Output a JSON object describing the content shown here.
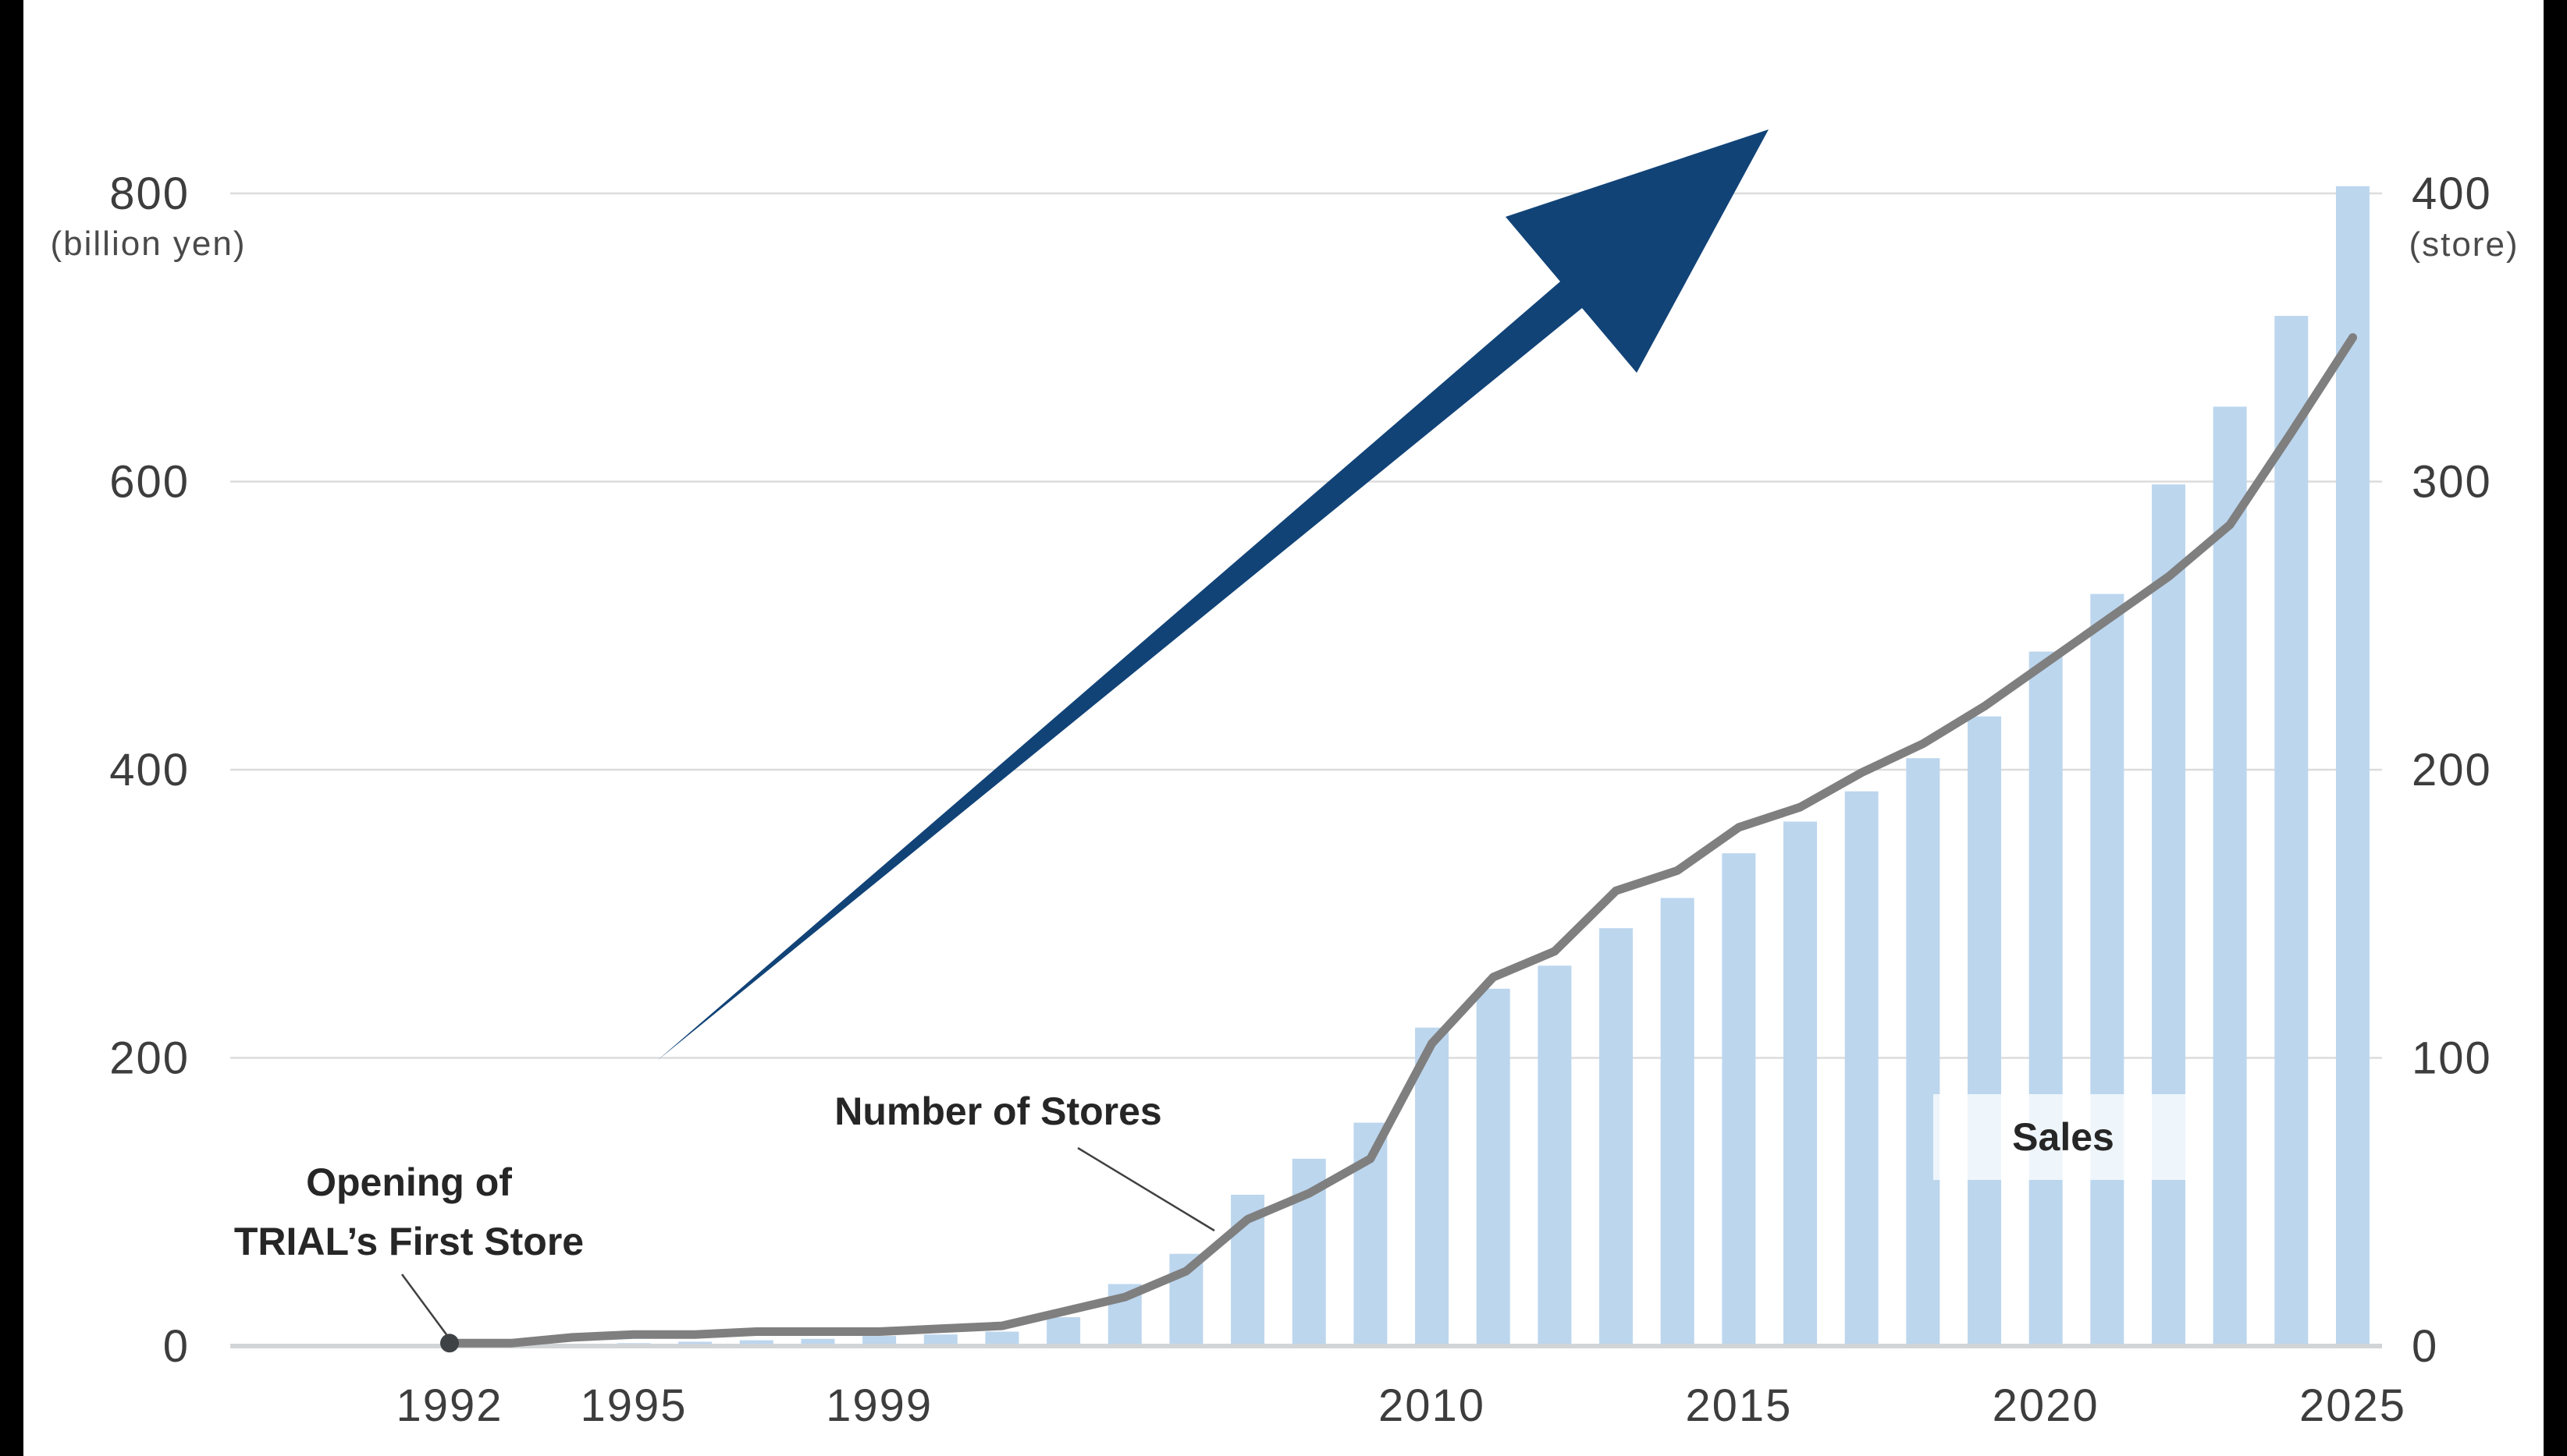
{
  "page": {
    "background": "#ffffff",
    "letterbox_color": "#000000"
  },
  "axes": {
    "left_unit": "(billion yen)",
    "right_unit": "(store)"
  },
  "annotations": {
    "first_store_line1": "Opening of",
    "first_store_line2": "TRIAL’s First Store",
    "number_of_stores": "Number of Stores",
    "sales": "Sales"
  },
  "colors": {
    "bar": "#bcd6ee",
    "stores_line": "#7f7f7f",
    "origin_dot": "#3f4245",
    "arrow": "#114377",
    "gridline": "#dcdcdc",
    "axis_line": "#d2d5d7",
    "tick_text": "#3d3d3d",
    "annotation_text": "#262626",
    "pointer_line": "#404040"
  },
  "chart_data": {
    "type": "combo",
    "x_slot_count": 32,
    "x_tick_labels": [
      {
        "slot": 0,
        "label": "1992"
      },
      {
        "slot": 3,
        "label": "1995"
      },
      {
        "slot": 7,
        "label": "1999"
      },
      {
        "slot": 16,
        "label": "2010"
      },
      {
        "slot": 21,
        "label": "2015"
      },
      {
        "slot": 26,
        "label": "2020"
      },
      {
        "slot": 31,
        "label": "2025"
      }
    ],
    "left_axis": {
      "label": "(billion yen)",
      "range": [
        0,
        800
      ],
      "ticks": [
        0,
        200,
        400,
        600,
        800
      ]
    },
    "right_axis": {
      "label": "(store)",
      "range": [
        0,
        400
      ],
      "ticks": [
        0,
        100,
        200,
        300,
        400
      ]
    },
    "gridlines": true,
    "legend_position": "inline-annotations",
    "series": [
      {
        "name": "Sales",
        "type": "bar",
        "axis": "left",
        "unit": "billion yen",
        "values": [
          null,
          null,
          null,
          2,
          3,
          4,
          5,
          7,
          8,
          10,
          20,
          43,
          64,
          105,
          130,
          155,
          221,
          248,
          264,
          290,
          311,
          342,
          364,
          385,
          408,
          437,
          482,
          522,
          598,
          652,
          715,
          805
        ]
      },
      {
        "name": "Number of Stores",
        "type": "line",
        "axis": "right",
        "unit": "stores",
        "start_marker": true,
        "values": [
          1,
          1,
          3,
          4,
          4,
          5,
          5,
          5,
          6,
          7,
          12,
          17,
          26,
          44,
          53,
          65,
          105,
          128,
          137,
          158,
          165,
          180,
          187,
          199,
          209,
          222,
          237,
          252,
          267,
          285,
          317,
          350
        ]
      }
    ],
    "annotation_markers": {
      "first_store_slot": 0,
      "number_of_stores_pointer_target_x_between_slots": [
        12,
        13
      ]
    }
  }
}
